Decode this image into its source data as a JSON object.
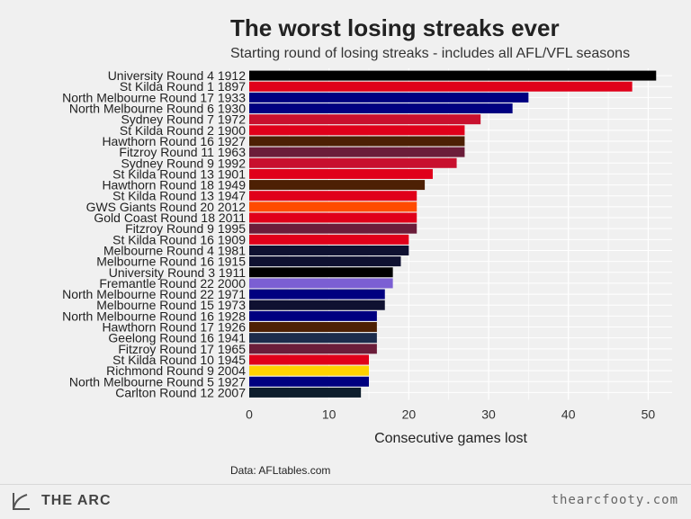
{
  "title": "The worst losing streaks ever",
  "subtitle": "Starting round of losing streaks - includes all AFL/VFL seasons",
  "source": "Data: AFLtables.com",
  "brand": {
    "name": "THE ARC",
    "icon": "arc-logo-icon",
    "site": "thearcfooty.com"
  },
  "chart_data": {
    "type": "bar",
    "orientation": "horizontal",
    "xlabel": "Consecutive games lost",
    "ylabel": "",
    "xlim": [
      0,
      53
    ],
    "xticks": [
      0,
      10,
      20,
      30,
      40,
      50
    ],
    "grid": true,
    "legend": "none",
    "categories": [
      "University Round 4 1912",
      "St Kilda Round 1 1897",
      "North Melbourne Round 17 1933",
      "North Melbourne Round 6 1930",
      "Sydney Round 7 1972",
      "St Kilda Round 2 1900",
      "Hawthorn Round 16 1927",
      "Fitzroy Round 11 1963",
      "Sydney Round 9 1992",
      "St Kilda Round 13 1901",
      "Hawthorn Round 18 1949",
      "St Kilda Round 13 1947",
      "GWS Giants Round 20 2012",
      "Gold Coast Round 18 2011",
      "Fitzroy Round 9 1995",
      "St Kilda Round 16 1909",
      "Melbourne Round 4 1981",
      "Melbourne Round 16 1915",
      "University Round 3 1911",
      "Fremantle Round 22 2000",
      "North Melbourne Round 22 1971",
      "Melbourne Round 15 1973",
      "North Melbourne Round 16 1928",
      "Hawthorn Round 17 1926",
      "Geelong Round 16 1941",
      "Fitzroy Round 17 1965",
      "St Kilda Round 10 1945",
      "Richmond Round 9 2004",
      "North Melbourne Round 5 1927",
      "Carlton Round 12 2007"
    ],
    "values": [
      51,
      48,
      35,
      33,
      29,
      27,
      27,
      27,
      26,
      23,
      22,
      21,
      21,
      21,
      21,
      20,
      20,
      19,
      18,
      18,
      17,
      17,
      16,
      16,
      16,
      16,
      15,
      15,
      15,
      14
    ],
    "colors": [
      "#000000",
      "#e0001a",
      "#000080",
      "#000080",
      "#c8102e",
      "#e0001a",
      "#4d2004",
      "#6b1d3a",
      "#c8102e",
      "#e0001a",
      "#4d2004",
      "#e0001a",
      "#ff4b00",
      "#e0001a",
      "#6b1d3a",
      "#e0001a",
      "#0f1131",
      "#0f1131",
      "#000000",
      "#7b5fd3",
      "#000080",
      "#0f1131",
      "#000080",
      "#4d2004",
      "#1c2c4c",
      "#6b1d3a",
      "#e0001a",
      "#ffd200",
      "#000080",
      "#0e1e2d"
    ]
  }
}
